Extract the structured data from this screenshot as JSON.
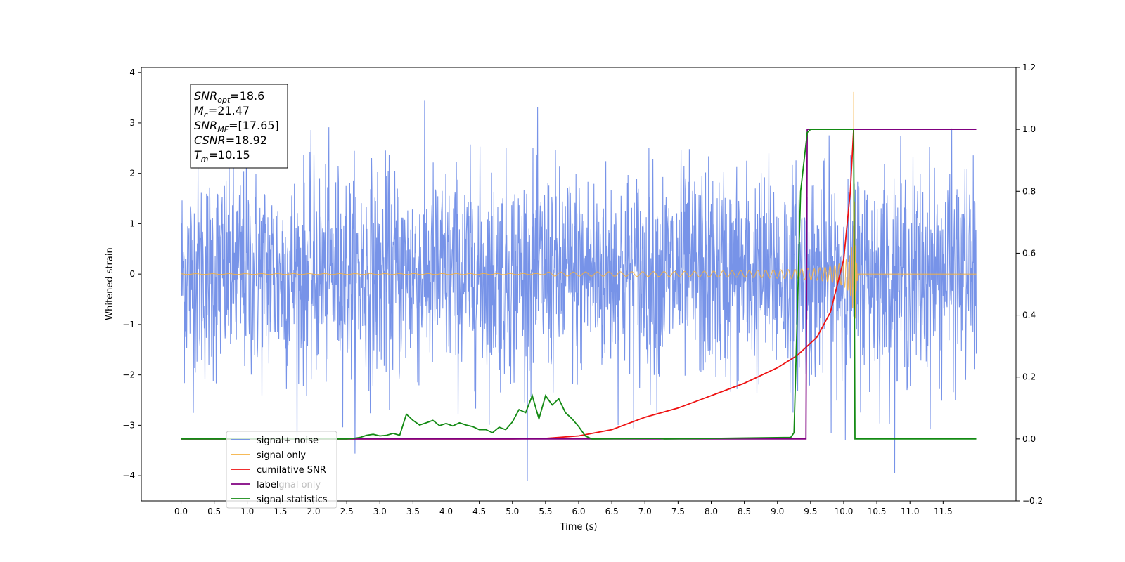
{
  "chart_data": {
    "type": "line",
    "title": "",
    "xlabel": "Time (s)",
    "ylabel": "Whitened strain",
    "xlim": [
      -0.6,
      12.6
    ],
    "ylim": [
      -4.5,
      4.1
    ],
    "ylim_right": [
      -0.2,
      1.2
    ],
    "x_ticks": [
      "0.0",
      "0.5",
      "1.0",
      "1.5",
      "2.0",
      "2.5",
      "3.0",
      "3.5",
      "4.0",
      "4.5",
      "5.0",
      "5.5",
      "6.0",
      "6.5",
      "7.0",
      "7.5",
      "8.0",
      "8.5",
      "9.0",
      "9.5",
      "10.0",
      "10.5",
      "11.0",
      "11.5"
    ],
    "y_ticks": [
      "4",
      "3",
      "2",
      "1",
      "0",
      "−1",
      "−2",
      "−3",
      "−4"
    ],
    "y_ticks_right": [
      "1.2",
      "1.0",
      "0.8",
      "0.6",
      "0.4",
      "0.2",
      "0.0",
      "−0.2"
    ],
    "grid": false,
    "legend_position": "lower-left",
    "series": [
      {
        "name": "signal+ noise",
        "color": "#6b8ae6",
        "axis": "left",
        "kind": "noise",
        "x_range": [
          0,
          12
        ],
        "amplitude_range": [
          -4.1,
          3.6
        ]
      },
      {
        "name": "signal only",
        "color": "#f5b041",
        "axis": "left",
        "kind": "chirp",
        "merger_time": 10.15,
        "peak_amplitude": 3.7
      },
      {
        "name": "cumilative SNR",
        "color": "#ee1111",
        "axis": "right",
        "x": [
          0,
          5,
          5.5,
          6,
          6.5,
          7,
          7.5,
          8,
          8.5,
          9,
          9.3,
          9.6,
          9.8,
          10.0,
          10.1,
          10.15,
          12
        ],
        "y": [
          0,
          0,
          0.002,
          0.01,
          0.03,
          0.07,
          0.1,
          0.14,
          0.18,
          0.23,
          0.27,
          0.33,
          0.41,
          0.58,
          0.8,
          1.0,
          1.0
        ]
      },
      {
        "name": "label",
        "color": "#800080",
        "axis": "right",
        "x": [
          0,
          9.43,
          9.45,
          10.15,
          10.15,
          12
        ],
        "y": [
          0,
          0,
          1,
          1,
          1,
          1
        ]
      },
      {
        "name": "signal statistics",
        "color": "#138a13",
        "axis": "right",
        "x": [
          0,
          2.5,
          2.6,
          2.7,
          2.8,
          2.9,
          3.0,
          3.1,
          3.2,
          3.3,
          3.4,
          3.5,
          3.6,
          3.7,
          3.8,
          3.9,
          4.0,
          4.1,
          4.2,
          4.3,
          4.4,
          4.5,
          4.6,
          4.7,
          4.8,
          4.9,
          5.0,
          5.1,
          5.2,
          5.3,
          5.4,
          5.5,
          5.6,
          5.7,
          5.8,
          5.9,
          6.0,
          6.1,
          6.2,
          7.2,
          7.3,
          9.2,
          9.25,
          9.35,
          9.45,
          9.5,
          10.15,
          10.17,
          12
        ],
        "y": [
          0,
          0,
          0.002,
          0.005,
          0.012,
          0.015,
          0.01,
          0.012,
          0.018,
          0.012,
          0.08,
          0.06,
          0.045,
          0.052,
          0.06,
          0.043,
          0.05,
          0.042,
          0.052,
          0.045,
          0.04,
          0.03,
          0.03,
          0.02,
          0.038,
          0.03,
          0.055,
          0.095,
          0.085,
          0.14,
          0.065,
          0.14,
          0.11,
          0.13,
          0.085,
          0.065,
          0.04,
          0.01,
          0,
          0.002,
          0,
          0.005,
          0.02,
          0.8,
          0.99,
          1,
          1,
          0,
          0
        ]
      }
    ],
    "legend": [
      "signal+ noise",
      "signal only",
      "cumilative SNR",
      "label",
      "signal statistics"
    ],
    "legend_behind_text": "signal only",
    "annotation": {
      "lines": [
        {
          "base": "SNR",
          "sub": "opt",
          "value": "=18.6"
        },
        {
          "base": "M",
          "sub": "c",
          "value": "=21.47"
        },
        {
          "base": "SNR",
          "sub": "MF",
          "value": "=[17.65]"
        },
        {
          "base": "CSNR",
          "sub": "",
          "value": "=18.92"
        },
        {
          "base": "T",
          "sub": "m",
          "value": "=10.15"
        }
      ]
    }
  }
}
